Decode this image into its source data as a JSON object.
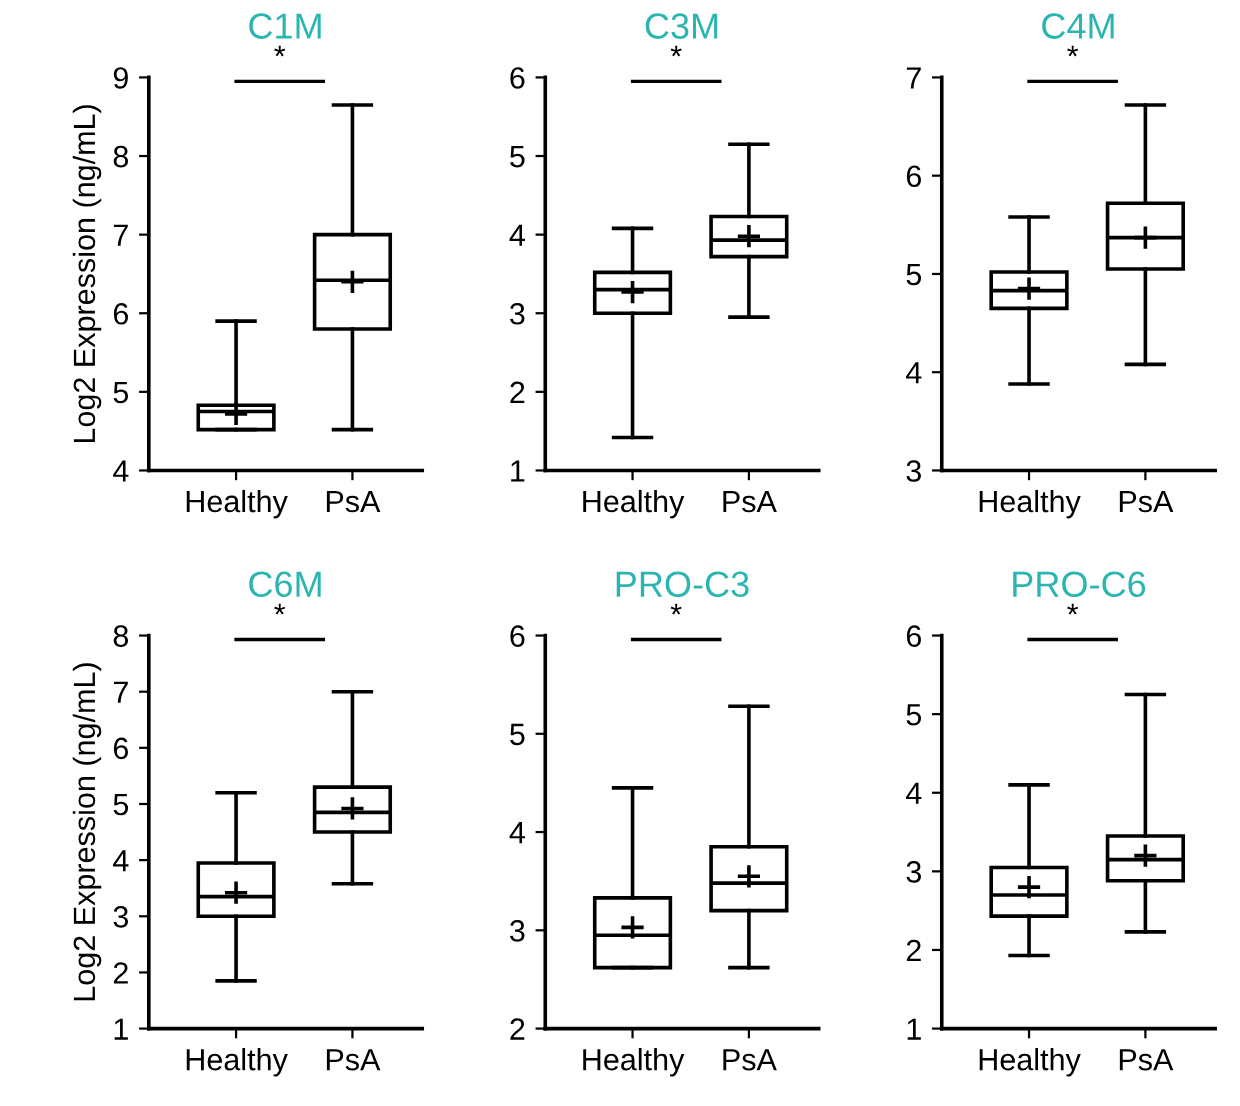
{
  "chart_data": [
    {
      "type": "box",
      "title": "C1M",
      "ylabel": "Log2 Expression (ng/mL)",
      "categories": [
        "Healthy",
        "PsA"
      ],
      "ylim": [
        4,
        9
      ],
      "yticks": [
        4,
        5,
        6,
        7,
        8,
        9
      ],
      "annotations": [
        "*"
      ],
      "boxes": [
        {
          "low": 4.52,
          "q1": 4.52,
          "median": 4.75,
          "q3": 4.83,
          "high": 5.9,
          "mean": 4.72
        },
        {
          "low": 4.52,
          "q1": 5.8,
          "median": 6.42,
          "q3": 7.0,
          "high": 8.65,
          "mean": 6.4
        }
      ]
    },
    {
      "type": "box",
      "title": "C3M",
      "categories": [
        "Healthy",
        "PsA"
      ],
      "ylim": [
        1,
        6
      ],
      "yticks": [
        1,
        2,
        3,
        4,
        5,
        6
      ],
      "annotations": [
        "*"
      ],
      "boxes": [
        {
          "low": 1.42,
          "q1": 3.0,
          "median": 3.3,
          "q3": 3.52,
          "high": 4.08,
          "mean": 3.27
        },
        {
          "low": 2.95,
          "q1": 3.72,
          "median": 3.93,
          "q3": 4.23,
          "high": 5.15,
          "mean": 3.98
        }
      ]
    },
    {
      "type": "box",
      "title": "C4M",
      "categories": [
        "Healthy",
        "PsA"
      ],
      "ylim": [
        3,
        7
      ],
      "yticks": [
        3,
        4,
        5,
        6,
        7
      ],
      "annotations": [
        "*"
      ],
      "boxes": [
        {
          "low": 3.88,
          "q1": 4.65,
          "median": 4.83,
          "q3": 5.02,
          "high": 5.58,
          "mean": 4.85
        },
        {
          "low": 4.08,
          "q1": 5.05,
          "median": 5.37,
          "q3": 5.72,
          "high": 6.72,
          "mean": 5.37
        }
      ]
    },
    {
      "type": "box",
      "title": "C6M",
      "ylabel": "Log2 Expression (ng/mL)",
      "categories": [
        "Healthy",
        "PsA"
      ],
      "ylim": [
        1,
        8
      ],
      "yticks": [
        1,
        2,
        3,
        4,
        5,
        6,
        7,
        8
      ],
      "annotations": [
        "*"
      ],
      "boxes": [
        {
          "low": 1.85,
          "q1": 3.0,
          "median": 3.35,
          "q3": 3.95,
          "high": 5.2,
          "mean": 3.42
        },
        {
          "low": 3.58,
          "q1": 4.5,
          "median": 4.85,
          "q3": 5.3,
          "high": 7.0,
          "mean": 4.92
        }
      ]
    },
    {
      "type": "box",
      "title": "PRO-C3",
      "categories": [
        "Healthy",
        "PsA"
      ],
      "ylim": [
        2,
        6
      ],
      "yticks": [
        2,
        3,
        4,
        5,
        6
      ],
      "annotations": [
        "*"
      ],
      "boxes": [
        {
          "low": 2.62,
          "q1": 2.62,
          "median": 2.95,
          "q3": 3.33,
          "high": 4.45,
          "mean": 3.03
        },
        {
          "low": 2.62,
          "q1": 3.2,
          "median": 3.48,
          "q3": 3.85,
          "high": 5.28,
          "mean": 3.55
        }
      ]
    },
    {
      "type": "box",
      "title": "PRO-C6",
      "categories": [
        "Healthy",
        "PsA"
      ],
      "ylim": [
        1,
        6
      ],
      "yticks": [
        1,
        2,
        3,
        4,
        5,
        6
      ],
      "annotations": [
        "*"
      ],
      "boxes": [
        {
          "low": 1.93,
          "q1": 2.43,
          "median": 2.7,
          "q3": 3.05,
          "high": 4.1,
          "mean": 2.8
        },
        {
          "low": 2.23,
          "q1": 2.88,
          "median": 3.15,
          "q3": 3.45,
          "high": 5.25,
          "mean": 3.2
        }
      ]
    }
  ]
}
